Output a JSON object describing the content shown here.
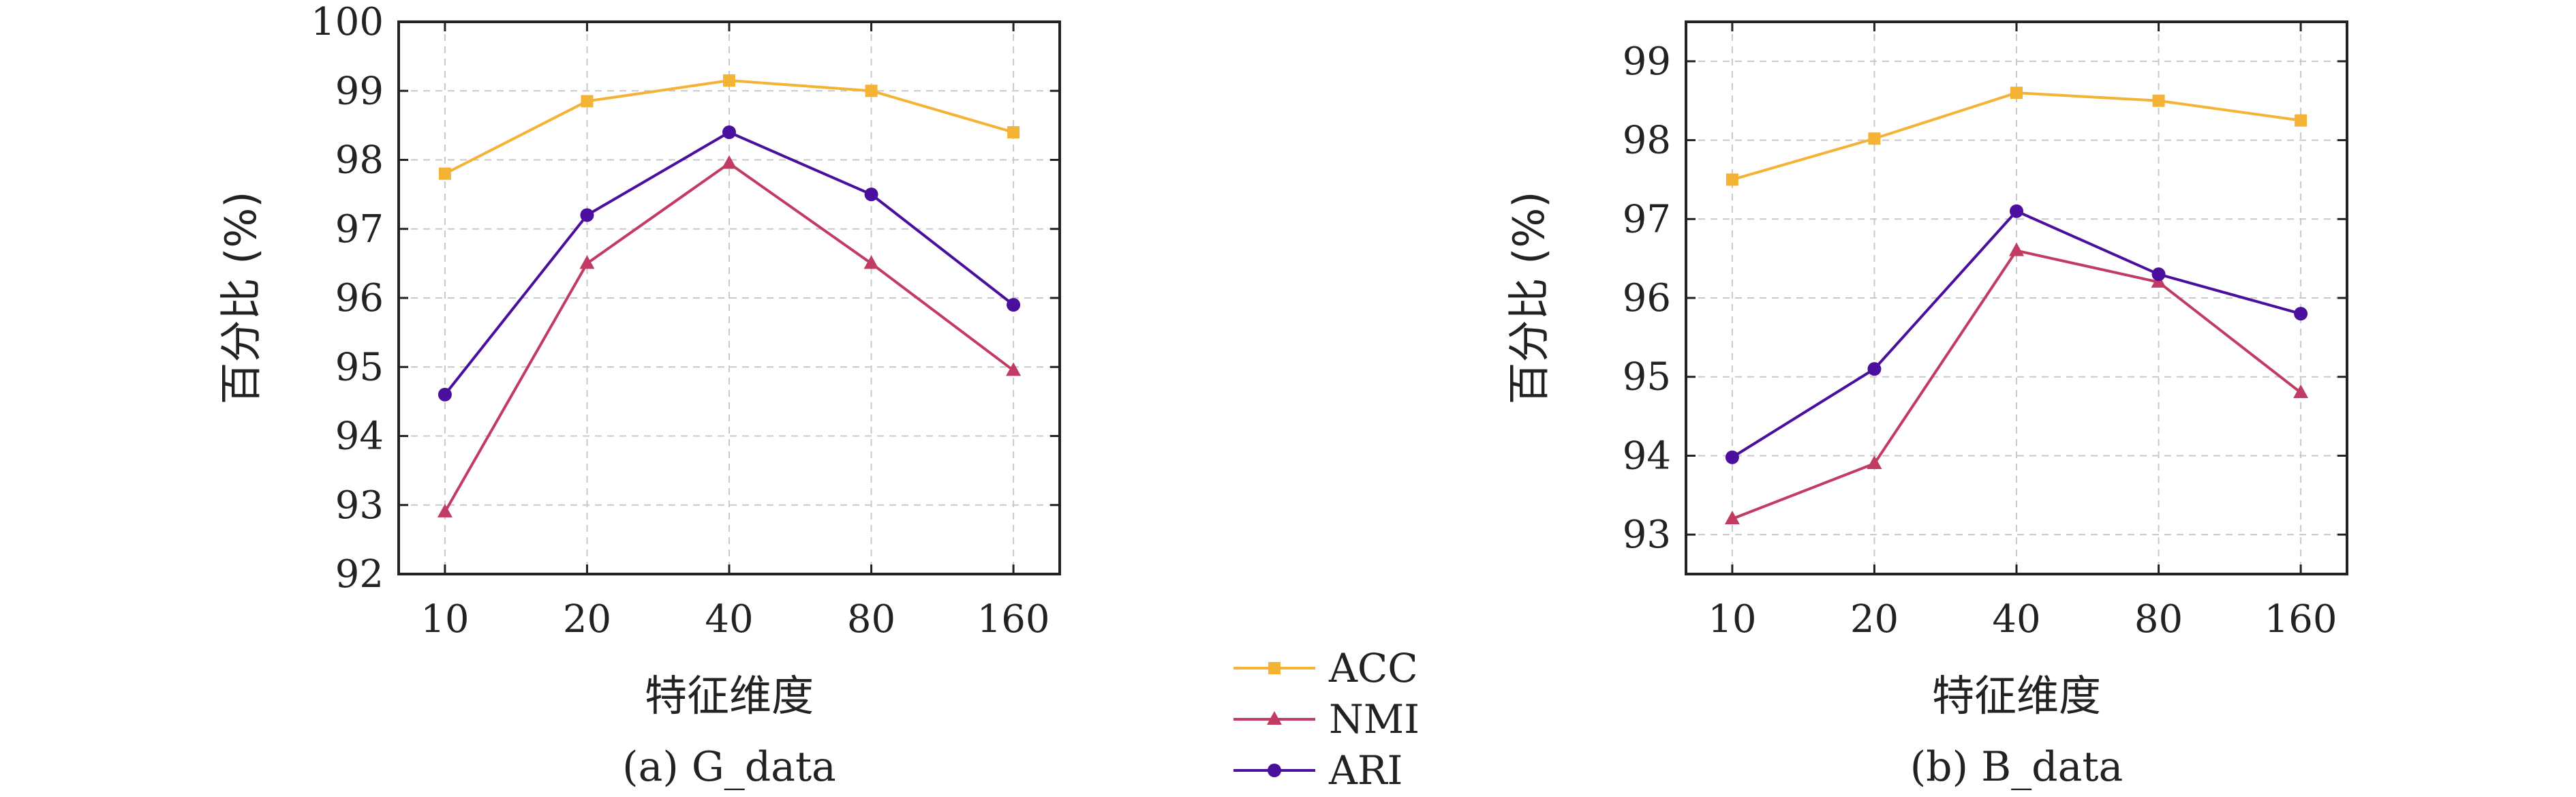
{
  "chart_data": [
    {
      "type": "line",
      "caption": "(a) G_data",
      "xlabel": "特征维度",
      "ylabel": "百分比 (%)",
      "categories": [
        "10",
        "20",
        "40",
        "80",
        "160"
      ],
      "ylim": [
        92,
        100
      ],
      "yticks": [
        92,
        93,
        94,
        95,
        96,
        97,
        98,
        99,
        100
      ],
      "grid": true,
      "series": [
        {
          "name": "ACC",
          "color": "#f5b335",
          "marker": "square",
          "values": [
            97.8,
            98.85,
            99.15,
            99.0,
            98.4
          ]
        },
        {
          "name": "NMI",
          "color": "#c23b63",
          "marker": "triangle",
          "values": [
            92.9,
            96.5,
            97.95,
            96.5,
            94.95
          ]
        },
        {
          "name": "ARI",
          "color": "#4b0f9e",
          "marker": "circle",
          "values": [
            94.6,
            97.2,
            98.4,
            97.5,
            95.9
          ]
        }
      ]
    },
    {
      "type": "line",
      "caption": "(b) B_data",
      "xlabel": "特征维度",
      "ylabel": "百分比 (%)",
      "categories": [
        "10",
        "20",
        "40",
        "80",
        "160"
      ],
      "ylim": [
        92.5,
        99.5
      ],
      "yticks": [
        93,
        94,
        95,
        96,
        97,
        98,
        99
      ],
      "grid": true,
      "series": [
        {
          "name": "ACC",
          "color": "#f5b335",
          "marker": "square",
          "values": [
            97.5,
            98.02,
            98.6,
            98.5,
            98.25
          ]
        },
        {
          "name": "NMI",
          "color": "#c23b63",
          "marker": "triangle",
          "values": [
            93.2,
            93.9,
            96.6,
            96.2,
            94.8
          ]
        },
        {
          "name": "ARI",
          "color": "#4b0f9e",
          "marker": "circle",
          "values": [
            93.98,
            95.1,
            97.1,
            96.3,
            95.8
          ]
        }
      ]
    }
  ],
  "legend": {
    "placement": "bottom-center",
    "entries": [
      {
        "label": "ACC",
        "color": "#f5b335",
        "marker": "square"
      },
      {
        "label": "NMI",
        "color": "#c23b63",
        "marker": "triangle"
      },
      {
        "label": "ARI",
        "color": "#4b0f9e",
        "marker": "circle"
      }
    ]
  }
}
